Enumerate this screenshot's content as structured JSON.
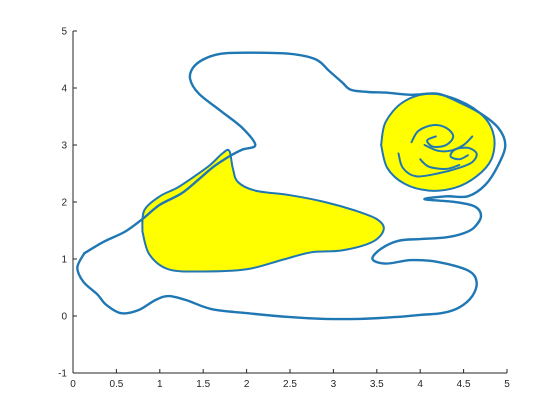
{
  "chart_data": {
    "type": "line",
    "title": "",
    "xlabel": "",
    "ylabel": "",
    "xlim": [
      0,
      5
    ],
    "ylim": [
      -1,
      5
    ],
    "x_ticks": [
      "0",
      "0.5",
      "1",
      "1.5",
      "2",
      "2.5",
      "3",
      "3.5",
      "4",
      "4.5",
      "5"
    ],
    "y_ticks": [
      "-1",
      "0",
      "1",
      "2",
      "3",
      "4",
      "5"
    ],
    "grid": false,
    "legend": "none",
    "colors": {
      "curve": "#1f77b4",
      "fill": "#ffff00"
    },
    "series": [
      {
        "role": "outer-boundary",
        "style": "line",
        "points": [
          [
            0.13,
            1.1
          ],
          [
            0.35,
            1.3
          ],
          [
            0.6,
            1.48
          ],
          [
            0.8,
            1.7
          ],
          [
            1.0,
            1.95
          ],
          [
            1.25,
            2.15
          ],
          [
            1.45,
            2.4
          ],
          [
            1.62,
            2.62
          ],
          [
            1.8,
            2.8
          ],
          [
            1.95,
            2.92
          ],
          [
            2.1,
            3.0
          ],
          [
            1.95,
            3.3
          ],
          [
            1.7,
            3.6
          ],
          [
            1.45,
            3.9
          ],
          [
            1.35,
            4.15
          ],
          [
            1.38,
            4.35
          ],
          [
            1.5,
            4.5
          ],
          [
            1.7,
            4.6
          ],
          [
            2.0,
            4.62
          ],
          [
            2.5,
            4.6
          ],
          [
            2.8,
            4.5
          ],
          [
            2.95,
            4.3
          ],
          [
            3.1,
            4.1
          ],
          [
            3.2,
            3.97
          ],
          [
            3.4,
            3.93
          ],
          [
            3.6,
            3.92
          ],
          [
            3.9,
            3.88
          ],
          [
            4.2,
            3.9
          ],
          [
            4.45,
            3.75
          ],
          [
            4.7,
            3.55
          ],
          [
            4.9,
            3.3
          ],
          [
            4.98,
            3.0
          ],
          [
            4.9,
            2.65
          ],
          [
            4.75,
            2.3
          ],
          [
            4.55,
            2.1
          ],
          [
            4.3,
            2.1
          ],
          [
            4.05,
            2.05
          ],
          [
            4.4,
            2.0
          ],
          [
            4.63,
            1.92
          ],
          [
            4.7,
            1.75
          ],
          [
            4.62,
            1.55
          ],
          [
            4.5,
            1.45
          ],
          [
            4.3,
            1.38
          ],
          [
            4.0,
            1.35
          ],
          [
            3.75,
            1.32
          ],
          [
            3.55,
            1.18
          ],
          [
            3.45,
            1.0
          ],
          [
            3.6,
            0.92
          ],
          [
            3.9,
            0.98
          ],
          [
            4.2,
            0.95
          ],
          [
            4.55,
            0.8
          ],
          [
            4.65,
            0.6
          ],
          [
            4.6,
            0.35
          ],
          [
            4.45,
            0.15
          ],
          [
            4.25,
            0.05
          ],
          [
            4.0,
            0.02
          ],
          [
            3.7,
            -0.02
          ],
          [
            3.3,
            -0.05
          ],
          [
            2.9,
            -0.05
          ],
          [
            2.5,
            -0.02
          ],
          [
            2.0,
            0.05
          ],
          [
            1.6,
            0.12
          ],
          [
            1.3,
            0.28
          ],
          [
            1.1,
            0.35
          ],
          [
            0.95,
            0.28
          ],
          [
            0.75,
            0.1
          ],
          [
            0.55,
            0.05
          ],
          [
            0.38,
            0.2
          ],
          [
            0.28,
            0.38
          ],
          [
            0.12,
            0.6
          ],
          [
            0.05,
            0.85
          ],
          [
            0.13,
            1.1
          ]
        ]
      },
      {
        "role": "filled-region-left",
        "style": "fill",
        "points": [
          [
            0.8,
            1.48
          ],
          [
            0.82,
            1.85
          ],
          [
            1.0,
            2.1
          ],
          [
            1.2,
            2.25
          ],
          [
            1.4,
            2.45
          ],
          [
            1.58,
            2.65
          ],
          [
            1.72,
            2.85
          ],
          [
            1.8,
            2.9
          ],
          [
            1.84,
            2.6
          ],
          [
            1.9,
            2.35
          ],
          [
            2.1,
            2.2
          ],
          [
            2.5,
            2.12
          ],
          [
            2.9,
            2.0
          ],
          [
            3.25,
            1.85
          ],
          [
            3.5,
            1.7
          ],
          [
            3.58,
            1.52
          ],
          [
            3.45,
            1.3
          ],
          [
            3.1,
            1.15
          ],
          [
            2.75,
            1.12
          ],
          [
            2.4,
            0.98
          ],
          [
            2.0,
            0.82
          ],
          [
            1.5,
            0.78
          ],
          [
            1.1,
            0.82
          ],
          [
            0.88,
            1.08
          ],
          [
            0.8,
            1.48
          ]
        ]
      },
      {
        "role": "filled-region-right",
        "style": "fill",
        "points": [
          [
            3.55,
            3.0
          ],
          [
            3.6,
            3.4
          ],
          [
            3.8,
            3.75
          ],
          [
            4.1,
            3.9
          ],
          [
            4.45,
            3.78
          ],
          [
            4.73,
            3.5
          ],
          [
            4.85,
            3.15
          ],
          [
            4.82,
            2.75
          ],
          [
            4.65,
            2.45
          ],
          [
            4.4,
            2.25
          ],
          [
            4.1,
            2.2
          ],
          [
            3.82,
            2.32
          ],
          [
            3.62,
            2.6
          ],
          [
            3.55,
            3.0
          ]
        ]
      },
      {
        "role": "inner-curve-1",
        "style": "line",
        "points": [
          [
            3.9,
            3.05
          ],
          [
            3.98,
            3.25
          ],
          [
            4.15,
            3.35
          ],
          [
            4.3,
            3.3
          ],
          [
            4.38,
            3.15
          ],
          [
            4.3,
            3.0
          ],
          [
            4.15,
            2.97
          ],
          [
            4.08,
            3.08
          ],
          [
            4.18,
            3.15
          ]
        ]
      },
      {
        "role": "inner-curve-2",
        "style": "line",
        "points": [
          [
            3.75,
            2.85
          ],
          [
            3.8,
            2.6
          ],
          [
            3.95,
            2.45
          ],
          [
            4.2,
            2.5
          ],
          [
            4.45,
            2.6
          ],
          [
            4.6,
            2.7
          ],
          [
            4.65,
            2.85
          ],
          [
            4.55,
            2.95
          ],
          [
            4.4,
            2.92
          ],
          [
            4.35,
            2.8
          ],
          [
            4.45,
            2.75
          ],
          [
            4.55,
            2.82
          ]
        ]
      },
      {
        "role": "inner-curve-3",
        "style": "line",
        "points": [
          [
            4.0,
            2.75
          ],
          [
            4.1,
            2.62
          ],
          [
            4.3,
            2.58
          ],
          [
            4.45,
            2.65
          ]
        ]
      },
      {
        "role": "inner-curve-4",
        "style": "line",
        "points": [
          [
            4.05,
            3.0
          ],
          [
            4.2,
            2.9
          ],
          [
            4.35,
            2.9
          ],
          [
            4.5,
            3.0
          ],
          [
            4.6,
            3.15
          ]
        ]
      }
    ]
  }
}
